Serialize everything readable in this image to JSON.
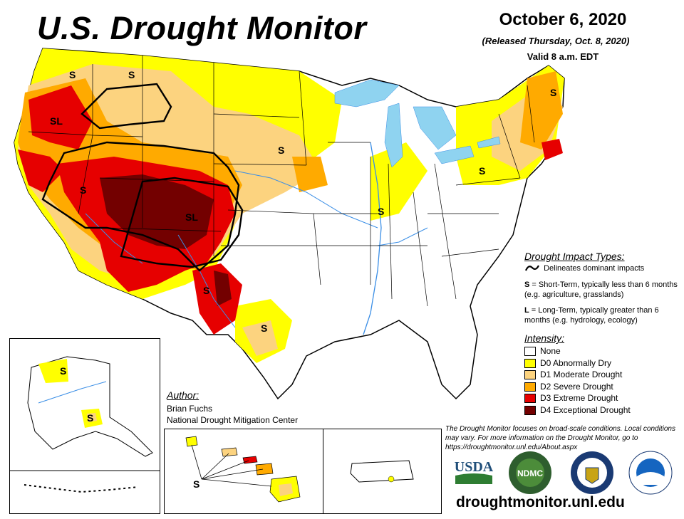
{
  "header": {
    "title": "U.S. Drought Monitor",
    "date": "October 6, 2020",
    "released": "(Released Thursday, Oct. 8, 2020)",
    "valid": "Valid 8 a.m. EDT"
  },
  "impact_types": {
    "title": "Drought Impact Types:",
    "line_desc": "Delineates dominant impacts",
    "s_letter": "S",
    "s_desc": " = Short-Term, typically less than 6 months (e.g. agriculture, grasslands)",
    "l_letter": "L",
    "l_desc": " = Long-Term, typically greater than 6 months (e.g. hydrology, ecology)"
  },
  "intensity": {
    "title": "Intensity:",
    "categories": [
      {
        "label": "None",
        "color": "#ffffff"
      },
      {
        "label": "D0 Abnormally Dry",
        "color": "#ffff00"
      },
      {
        "label": "D1 Moderate Drought",
        "color": "#fcd37f"
      },
      {
        "label": "D2 Severe Drought",
        "color": "#ffaa00"
      },
      {
        "label": "D3 Extreme Drought",
        "color": "#e60000"
      },
      {
        "label": "D4 Exceptional Drought",
        "color": "#730000"
      }
    ]
  },
  "author": {
    "title": "Author:",
    "name": "Brian Fuchs",
    "org": "National Drought Mitigation Center"
  },
  "note": "The Drought Monitor focuses on broad-scale conditions. Local conditions may vary. For more information on the Drought Monitor, go to https://droughtmonitor.unl.edu/About.aspx",
  "url": "droughtmonitor.unl.edu",
  "map_labels": {
    "sl_nw": "SL",
    "sl_co": "SL",
    "s": "S"
  },
  "logos": {
    "usda": "USDA",
    "ndmc": "NDMC"
  },
  "colors": {
    "water": "#8fd3f0",
    "river": "#3a8ee6",
    "state_line": "#000000"
  }
}
